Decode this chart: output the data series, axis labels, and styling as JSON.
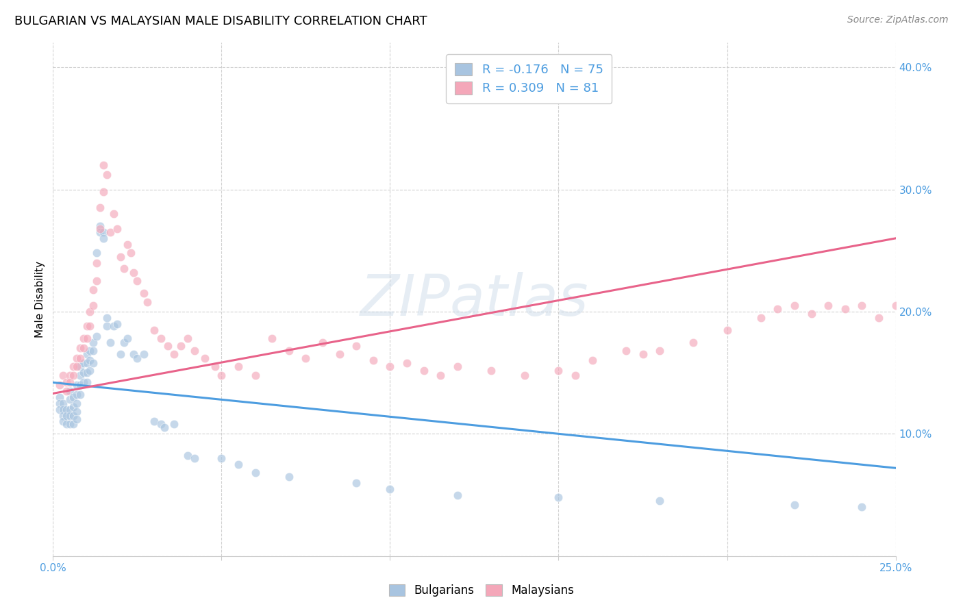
{
  "title": "BULGARIAN VS MALAYSIAN MALE DISABILITY CORRELATION CHART",
  "source": "Source: ZipAtlas.com",
  "ylabel": "Male Disability",
  "xlim": [
    0.0,
    0.25
  ],
  "ylim": [
    0.0,
    0.42
  ],
  "xticks": [
    0.0,
    0.05,
    0.1,
    0.15,
    0.2,
    0.25
  ],
  "yticks": [
    0.0,
    0.1,
    0.2,
    0.3,
    0.4
  ],
  "bg_color": "#ffffff",
  "grid_color": "#cccccc",
  "blue_color": "#a8c4e0",
  "pink_color": "#f4a7b9",
  "blue_line_color": "#4d9de0",
  "pink_line_color": "#e8638a",
  "watermark": "ZIPatlas",
  "legend_R_blue": "R = -0.176",
  "legend_N_blue": "N = 75",
  "legend_R_pink": "R = 0.309",
  "legend_N_pink": "N = 81",
  "blue_scatter_x": [
    0.002,
    0.002,
    0.002,
    0.003,
    0.003,
    0.003,
    0.003,
    0.004,
    0.004,
    0.004,
    0.005,
    0.005,
    0.005,
    0.005,
    0.005,
    0.006,
    0.006,
    0.006,
    0.006,
    0.007,
    0.007,
    0.007,
    0.007,
    0.007,
    0.008,
    0.008,
    0.008,
    0.008,
    0.009,
    0.009,
    0.009,
    0.01,
    0.01,
    0.01,
    0.01,
    0.011,
    0.011,
    0.011,
    0.012,
    0.012,
    0.012,
    0.013,
    0.013,
    0.014,
    0.014,
    0.015,
    0.015,
    0.016,
    0.016,
    0.017,
    0.018,
    0.019,
    0.02,
    0.021,
    0.022,
    0.024,
    0.025,
    0.027,
    0.03,
    0.032,
    0.033,
    0.036,
    0.04,
    0.042,
    0.05,
    0.055,
    0.06,
    0.07,
    0.09,
    0.1,
    0.12,
    0.15,
    0.18,
    0.22,
    0.24
  ],
  "blue_scatter_y": [
    0.13,
    0.125,
    0.12,
    0.125,
    0.12,
    0.115,
    0.11,
    0.12,
    0.115,
    0.108,
    0.135,
    0.128,
    0.12,
    0.115,
    0.108,
    0.13,
    0.122,
    0.115,
    0.108,
    0.14,
    0.132,
    0.125,
    0.118,
    0.112,
    0.155,
    0.148,
    0.14,
    0.132,
    0.158,
    0.15,
    0.142,
    0.165,
    0.158,
    0.15,
    0.142,
    0.168,
    0.16,
    0.152,
    0.175,
    0.168,
    0.158,
    0.248,
    0.18,
    0.27,
    0.265,
    0.265,
    0.26,
    0.195,
    0.188,
    0.175,
    0.188,
    0.19,
    0.165,
    0.175,
    0.178,
    0.165,
    0.162,
    0.165,
    0.11,
    0.108,
    0.105,
    0.108,
    0.082,
    0.08,
    0.08,
    0.075,
    0.068,
    0.065,
    0.06,
    0.055,
    0.05,
    0.048,
    0.045,
    0.042,
    0.04
  ],
  "pink_scatter_x": [
    0.002,
    0.003,
    0.004,
    0.004,
    0.005,
    0.005,
    0.006,
    0.006,
    0.007,
    0.007,
    0.008,
    0.008,
    0.009,
    0.009,
    0.01,
    0.01,
    0.011,
    0.011,
    0.012,
    0.012,
    0.013,
    0.013,
    0.014,
    0.014,
    0.015,
    0.015,
    0.016,
    0.017,
    0.018,
    0.019,
    0.02,
    0.021,
    0.022,
    0.023,
    0.024,
    0.025,
    0.027,
    0.028,
    0.03,
    0.032,
    0.034,
    0.036,
    0.038,
    0.04,
    0.042,
    0.045,
    0.048,
    0.05,
    0.055,
    0.06,
    0.065,
    0.07,
    0.075,
    0.08,
    0.085,
    0.09,
    0.095,
    0.1,
    0.105,
    0.11,
    0.115,
    0.12,
    0.13,
    0.14,
    0.15,
    0.155,
    0.16,
    0.17,
    0.175,
    0.18,
    0.19,
    0.2,
    0.21,
    0.215,
    0.22,
    0.225,
    0.23,
    0.235,
    0.24,
    0.245,
    0.25
  ],
  "pink_scatter_y": [
    0.14,
    0.148,
    0.142,
    0.135,
    0.148,
    0.142,
    0.155,
    0.148,
    0.162,
    0.155,
    0.17,
    0.162,
    0.178,
    0.17,
    0.188,
    0.178,
    0.2,
    0.188,
    0.218,
    0.205,
    0.24,
    0.225,
    0.285,
    0.268,
    0.32,
    0.298,
    0.312,
    0.265,
    0.28,
    0.268,
    0.245,
    0.235,
    0.255,
    0.248,
    0.232,
    0.225,
    0.215,
    0.208,
    0.185,
    0.178,
    0.172,
    0.165,
    0.172,
    0.178,
    0.168,
    0.162,
    0.155,
    0.148,
    0.155,
    0.148,
    0.178,
    0.168,
    0.162,
    0.175,
    0.165,
    0.172,
    0.16,
    0.155,
    0.158,
    0.152,
    0.148,
    0.155,
    0.152,
    0.148,
    0.152,
    0.148,
    0.16,
    0.168,
    0.165,
    0.168,
    0.175,
    0.185,
    0.195,
    0.202,
    0.205,
    0.198,
    0.205,
    0.202,
    0.205,
    0.195,
    0.205
  ],
  "blue_trend": [
    0.0,
    0.25,
    0.142,
    0.072
  ],
  "pink_trend": [
    0.0,
    0.25,
    0.133,
    0.26
  ],
  "title_fontsize": 13,
  "axis_label_fontsize": 11,
  "tick_fontsize": 11,
  "legend_fontsize": 13,
  "source_fontsize": 10,
  "marker_size": 80,
  "marker_alpha": 0.65,
  "marker_linewidth": 0.5,
  "marker_edge_color": "#ffffff",
  "tick_color": "#4d9de0"
}
